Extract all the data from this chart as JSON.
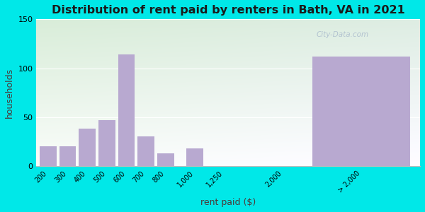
{
  "title": "Distribution of rent paid by renters in Bath, VA in 2021",
  "xlabel": "rent paid ($)",
  "ylabel": "households",
  "bar_labels": [
    "200",
    "300",
    "400",
    "500",
    "600",
    "700",
    "800",
    "1,000",
    "1,250",
    "2,000",
    "> 2,000"
  ],
  "bar_values": [
    20,
    20,
    38,
    47,
    114,
    30,
    13,
    18,
    0,
    0,
    112
  ],
  "bar_color": "#b8a9d0",
  "bg_outer": "#00e8e8",
  "bg_grad_top": "#d8edd8",
  "bg_grad_bottom": "#f8f8fc",
  "ylim": [
    0,
    150
  ],
  "yticks": [
    0,
    50,
    100,
    150
  ],
  "title_fontsize": 11.5,
  "axis_label_fontsize": 9,
  "watermark": "City-Data.com"
}
